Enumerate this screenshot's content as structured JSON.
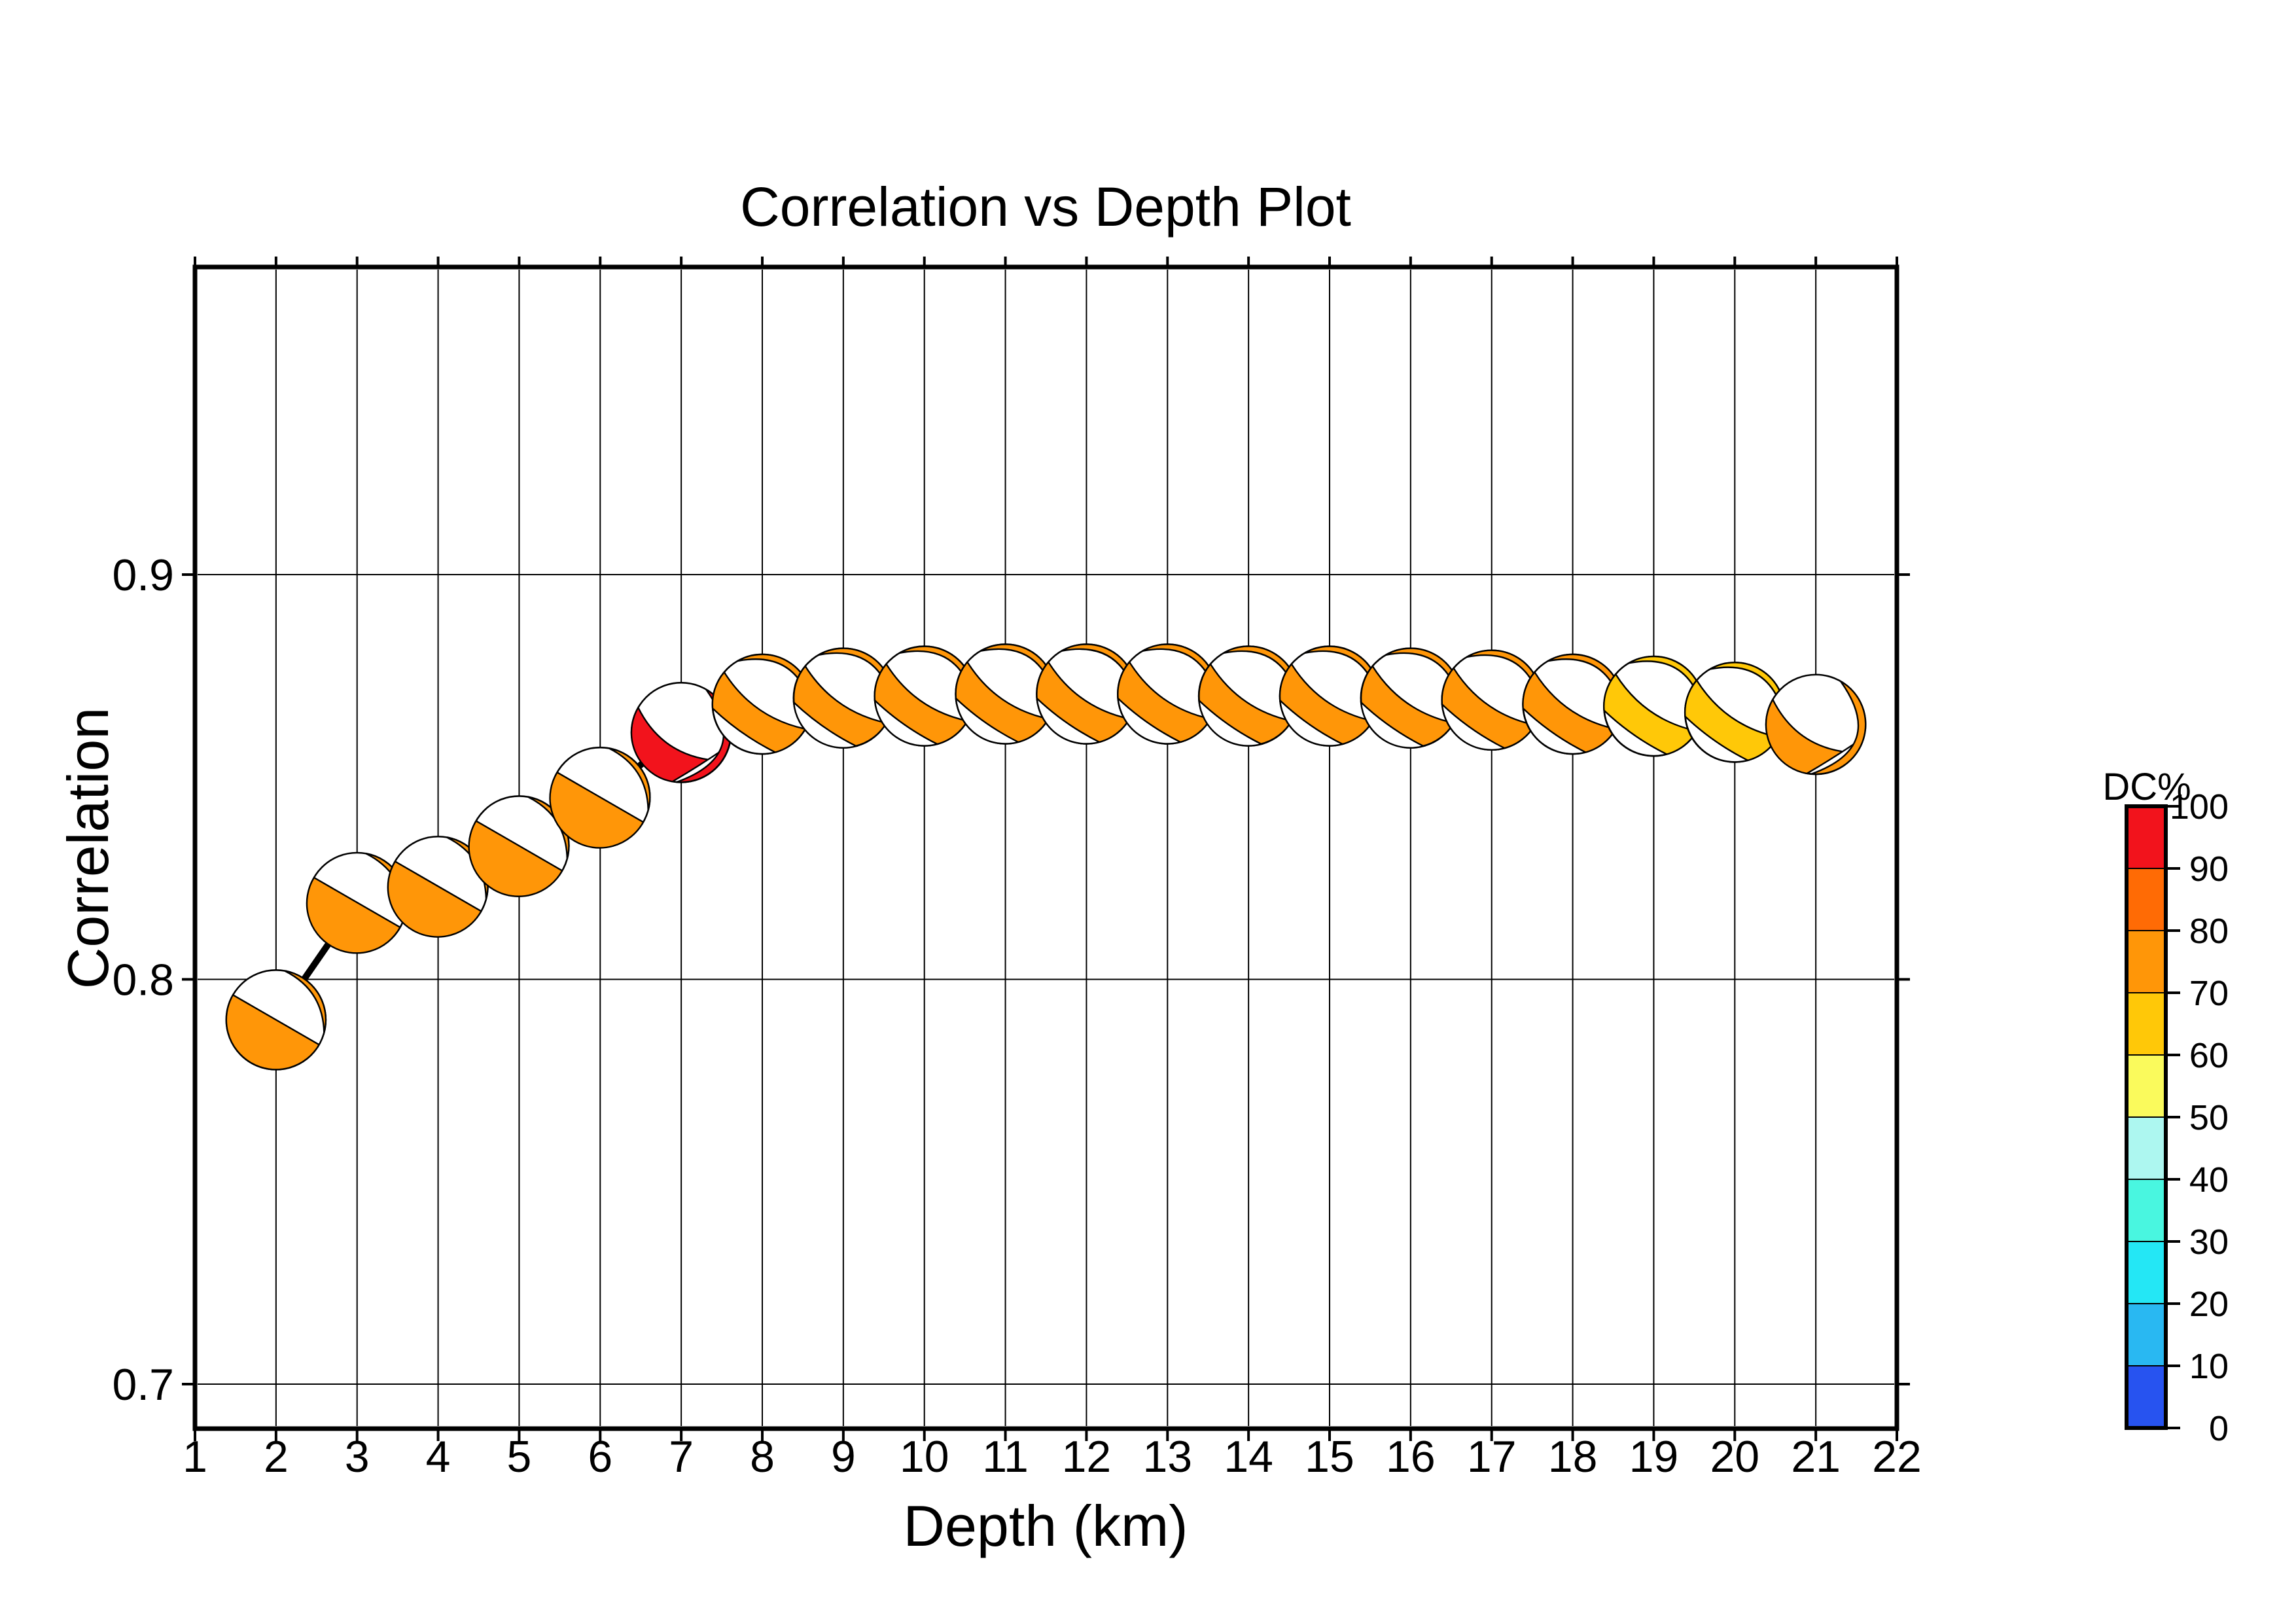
{
  "chart_data": {
    "type": "scatter",
    "marker": "focal-mechanism-beachball",
    "title": "Correlation vs Depth Plot",
    "xlabel": "Depth (km)",
    "ylabel": "Correlation",
    "xlim": [
      1,
      22
    ],
    "ylim": [
      0.689,
      0.976
    ],
    "grid": true,
    "x_ticks": [
      1,
      2,
      3,
      4,
      5,
      6,
      7,
      8,
      9,
      10,
      11,
      12,
      13,
      14,
      15,
      16,
      17,
      18,
      19,
      20,
      21,
      22
    ],
    "y_ticks": [
      0.7,
      0.8,
      0.9
    ],
    "y_tick_labels": [
      "0.7",
      "0.8",
      "0.9"
    ],
    "connecting_line_color": "#000000",
    "colorbar": {
      "label": "DC%",
      "ticks": [
        0,
        10,
        20,
        30,
        40,
        50,
        60,
        70,
        80,
        90,
        100
      ],
      "palette_bottom_to_top": [
        "#2753F0",
        "#29B8F2",
        "#24E7F5",
        "#49F6E0",
        "#ADF7F0",
        "#FAFA5C",
        "#FFC808",
        "#FF9608",
        "#FF6B05",
        "#F2131C"
      ]
    },
    "points": [
      {
        "depth": 2,
        "correlation": 0.79,
        "dc_percent": 78,
        "mechanism": "chord"
      },
      {
        "depth": 3,
        "correlation": 0.819,
        "dc_percent": 78,
        "mechanism": "chord"
      },
      {
        "depth": 4,
        "correlation": 0.823,
        "dc_percent": 78,
        "mechanism": "chord"
      },
      {
        "depth": 5,
        "correlation": 0.833,
        "dc_percent": 78,
        "mechanism": "chord"
      },
      {
        "depth": 6,
        "correlation": 0.845,
        "dc_percent": 78,
        "mechanism": "chord"
      },
      {
        "depth": 7,
        "correlation": 0.861,
        "dc_percent": 95,
        "mechanism": "band-right"
      },
      {
        "depth": 8,
        "correlation": 0.868,
        "dc_percent": 78,
        "mechanism": "band-left"
      },
      {
        "depth": 9,
        "correlation": 0.8695,
        "dc_percent": 78,
        "mechanism": "band-left"
      },
      {
        "depth": 10,
        "correlation": 0.87,
        "dc_percent": 78,
        "mechanism": "band-left"
      },
      {
        "depth": 11,
        "correlation": 0.8705,
        "dc_percent": 78,
        "mechanism": "band-left"
      },
      {
        "depth": 12,
        "correlation": 0.8705,
        "dc_percent": 78,
        "mechanism": "band-left"
      },
      {
        "depth": 13,
        "correlation": 0.8705,
        "dc_percent": 78,
        "mechanism": "band-left"
      },
      {
        "depth": 14,
        "correlation": 0.87,
        "dc_percent": 78,
        "mechanism": "band-left"
      },
      {
        "depth": 15,
        "correlation": 0.87,
        "dc_percent": 78,
        "mechanism": "band-left"
      },
      {
        "depth": 16,
        "correlation": 0.8695,
        "dc_percent": 78,
        "mechanism": "band-left"
      },
      {
        "depth": 17,
        "correlation": 0.869,
        "dc_percent": 78,
        "mechanism": "band-left"
      },
      {
        "depth": 18,
        "correlation": 0.868,
        "dc_percent": 78,
        "mechanism": "band-left"
      },
      {
        "depth": 19,
        "correlation": 0.8675,
        "dc_percent": 65,
        "mechanism": "band-left"
      },
      {
        "depth": 20,
        "correlation": 0.866,
        "dc_percent": 65,
        "mechanism": "band-left"
      },
      {
        "depth": 21,
        "correlation": 0.863,
        "dc_percent": 78,
        "mechanism": "band-right"
      }
    ]
  }
}
